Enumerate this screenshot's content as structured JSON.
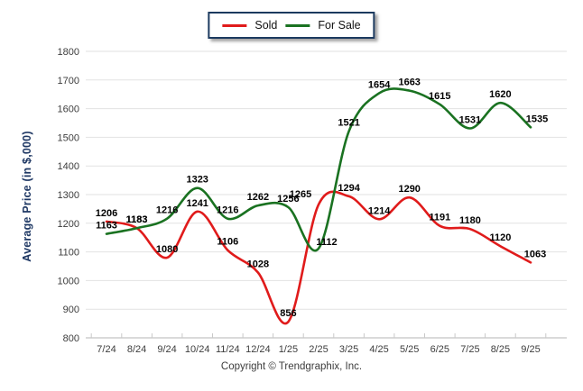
{
  "legend": {
    "items": [
      {
        "label": "Sold"
      },
      {
        "label": "For Sale"
      }
    ]
  },
  "footer": {
    "copyright": "Copyright © Trendgraphix, Inc."
  },
  "chart_data": {
    "type": "line",
    "title": "",
    "xlabel": "",
    "ylabel": "Average Price (in $,000)",
    "ylim": [
      800,
      1800
    ],
    "y_ticks": [
      800,
      900,
      1000,
      1100,
      1200,
      1300,
      1400,
      1500,
      1600,
      1700,
      1800
    ],
    "categories": [
      "7/24",
      "8/24",
      "9/24",
      "10/24",
      "11/24",
      "12/24",
      "1/25",
      "2/25",
      "3/25",
      "4/25",
      "5/25",
      "6/25",
      "7/25",
      "8/25",
      "9/25"
    ],
    "series": [
      {
        "name": "Sold",
        "color": "#e01b1b",
        "values": [
          1206,
          1183,
          1080,
          1241,
          1106,
          1028,
          856,
          1265,
          1294,
          1214,
          1290,
          1191,
          1180,
          1120,
          1063
        ]
      },
      {
        "name": "For Sale",
        "color": "#1a7221",
        "values": [
          1163,
          1183,
          1216,
          1323,
          1216,
          1262,
          1256,
          1112,
          1521,
          1654,
          1663,
          1615,
          1531,
          1620,
          1535
        ]
      }
    ],
    "grid": "horizontal",
    "legend_position": "top-center",
    "data_labels": true
  }
}
